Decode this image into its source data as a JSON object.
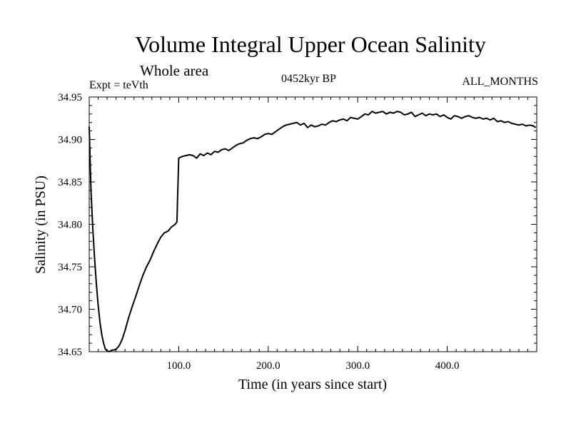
{
  "chart_data": {
    "type": "line",
    "title": "Volume Integral Upper Ocean Salinity",
    "subtitle": "Whole area",
    "annotations": {
      "left": "Expt = teVth",
      "center": "0452kyr BP",
      "right": "ALL_MONTHS"
    },
    "xlabel": "Time (in years since start)",
    "ylabel": "Salinity (in PSU)",
    "xlim": [
      0,
      500
    ],
    "ylim": [
      34.65,
      34.95
    ],
    "xticks": [
      {
        "value": 100,
        "label": "100.0"
      },
      {
        "value": 200,
        "label": "200.0"
      },
      {
        "value": 300,
        "label": "300.0"
      },
      {
        "value": 400,
        "label": "400.0"
      }
    ],
    "yticks": [
      {
        "value": 34.65,
        "label": "34.65"
      },
      {
        "value": 34.7,
        "label": "34.70"
      },
      {
        "value": 34.75,
        "label": "34.75"
      },
      {
        "value": 34.8,
        "label": "34.80"
      },
      {
        "value": 34.85,
        "label": "34.85"
      },
      {
        "value": 34.9,
        "label": "34.90"
      },
      {
        "value": 34.95,
        "label": "34.95"
      }
    ],
    "grid": false,
    "legend": "none",
    "series": [
      {
        "color": "#000000",
        "x": [
          0,
          1,
          2,
          4,
          6,
          8,
          10,
          12,
          14,
          16,
          18,
          20,
          22,
          24,
          26,
          28,
          30,
          32,
          34,
          37,
          40,
          44,
          48,
          52,
          56,
          60,
          64,
          68,
          72,
          76,
          80,
          84,
          88,
          92,
          96,
          98,
          99,
          100,
          102,
          104,
          108,
          112,
          116,
          120,
          124,
          128,
          132,
          136,
          140,
          144,
          148,
          152,
          156,
          160,
          164,
          168,
          172,
          176,
          180,
          184,
          188,
          192,
          196,
          200,
          204,
          208,
          212,
          216,
          220,
          224,
          228,
          232,
          236,
          240,
          244,
          248,
          252,
          256,
          260,
          264,
          268,
          272,
          276,
          280,
          284,
          288,
          292,
          296,
          300,
          304,
          308,
          312,
          316,
          320,
          324,
          328,
          332,
          336,
          340,
          344,
          348,
          352,
          356,
          360,
          364,
          368,
          372,
          376,
          380,
          384,
          388,
          392,
          396,
          400,
          404,
          408,
          412,
          416,
          420,
          424,
          428,
          432,
          436,
          440,
          444,
          448,
          452,
          456,
          460,
          464,
          468,
          472,
          476,
          480,
          484,
          488,
          492,
          496,
          499
        ],
        "y": [
          34.915,
          34.875,
          34.84,
          34.795,
          34.76,
          34.73,
          34.705,
          34.685,
          34.67,
          34.66,
          34.653,
          34.651,
          34.65,
          34.651,
          34.652,
          34.652,
          34.653,
          34.655,
          34.658,
          34.665,
          34.675,
          34.69,
          34.703,
          34.715,
          34.728,
          34.74,
          34.75,
          34.758,
          34.768,
          34.777,
          34.785,
          34.79,
          34.792,
          34.797,
          34.8,
          34.803,
          34.84,
          34.878,
          34.879,
          34.88,
          34.881,
          34.882,
          34.881,
          34.878,
          34.883,
          34.881,
          34.884,
          34.882,
          34.886,
          34.885,
          34.888,
          34.889,
          34.887,
          34.89,
          34.893,
          34.895,
          34.896,
          34.899,
          34.901,
          34.902,
          34.901,
          34.903,
          34.906,
          34.907,
          34.906,
          34.909,
          34.912,
          34.915,
          34.917,
          34.918,
          34.919,
          34.92,
          34.917,
          34.919,
          34.914,
          34.917,
          34.915,
          34.916,
          34.918,
          34.917,
          34.92,
          34.922,
          34.921,
          34.923,
          34.924,
          34.922,
          34.926,
          34.925,
          34.924,
          34.927,
          34.93,
          34.929,
          34.933,
          34.931,
          34.932,
          34.933,
          34.93,
          34.932,
          34.931,
          34.933,
          34.932,
          34.929,
          34.93,
          34.932,
          34.927,
          34.929,
          34.931,
          34.928,
          34.93,
          34.929,
          34.93,
          34.927,
          34.929,
          34.926,
          34.924,
          34.928,
          34.927,
          34.925,
          34.927,
          34.928,
          34.926,
          34.925,
          34.926,
          34.924,
          34.925,
          34.923,
          34.925,
          34.921,
          34.922,
          34.92,
          34.921,
          34.919,
          34.918,
          34.917,
          34.918,
          34.916,
          34.917,
          34.916,
          34.914
        ]
      }
    ]
  }
}
